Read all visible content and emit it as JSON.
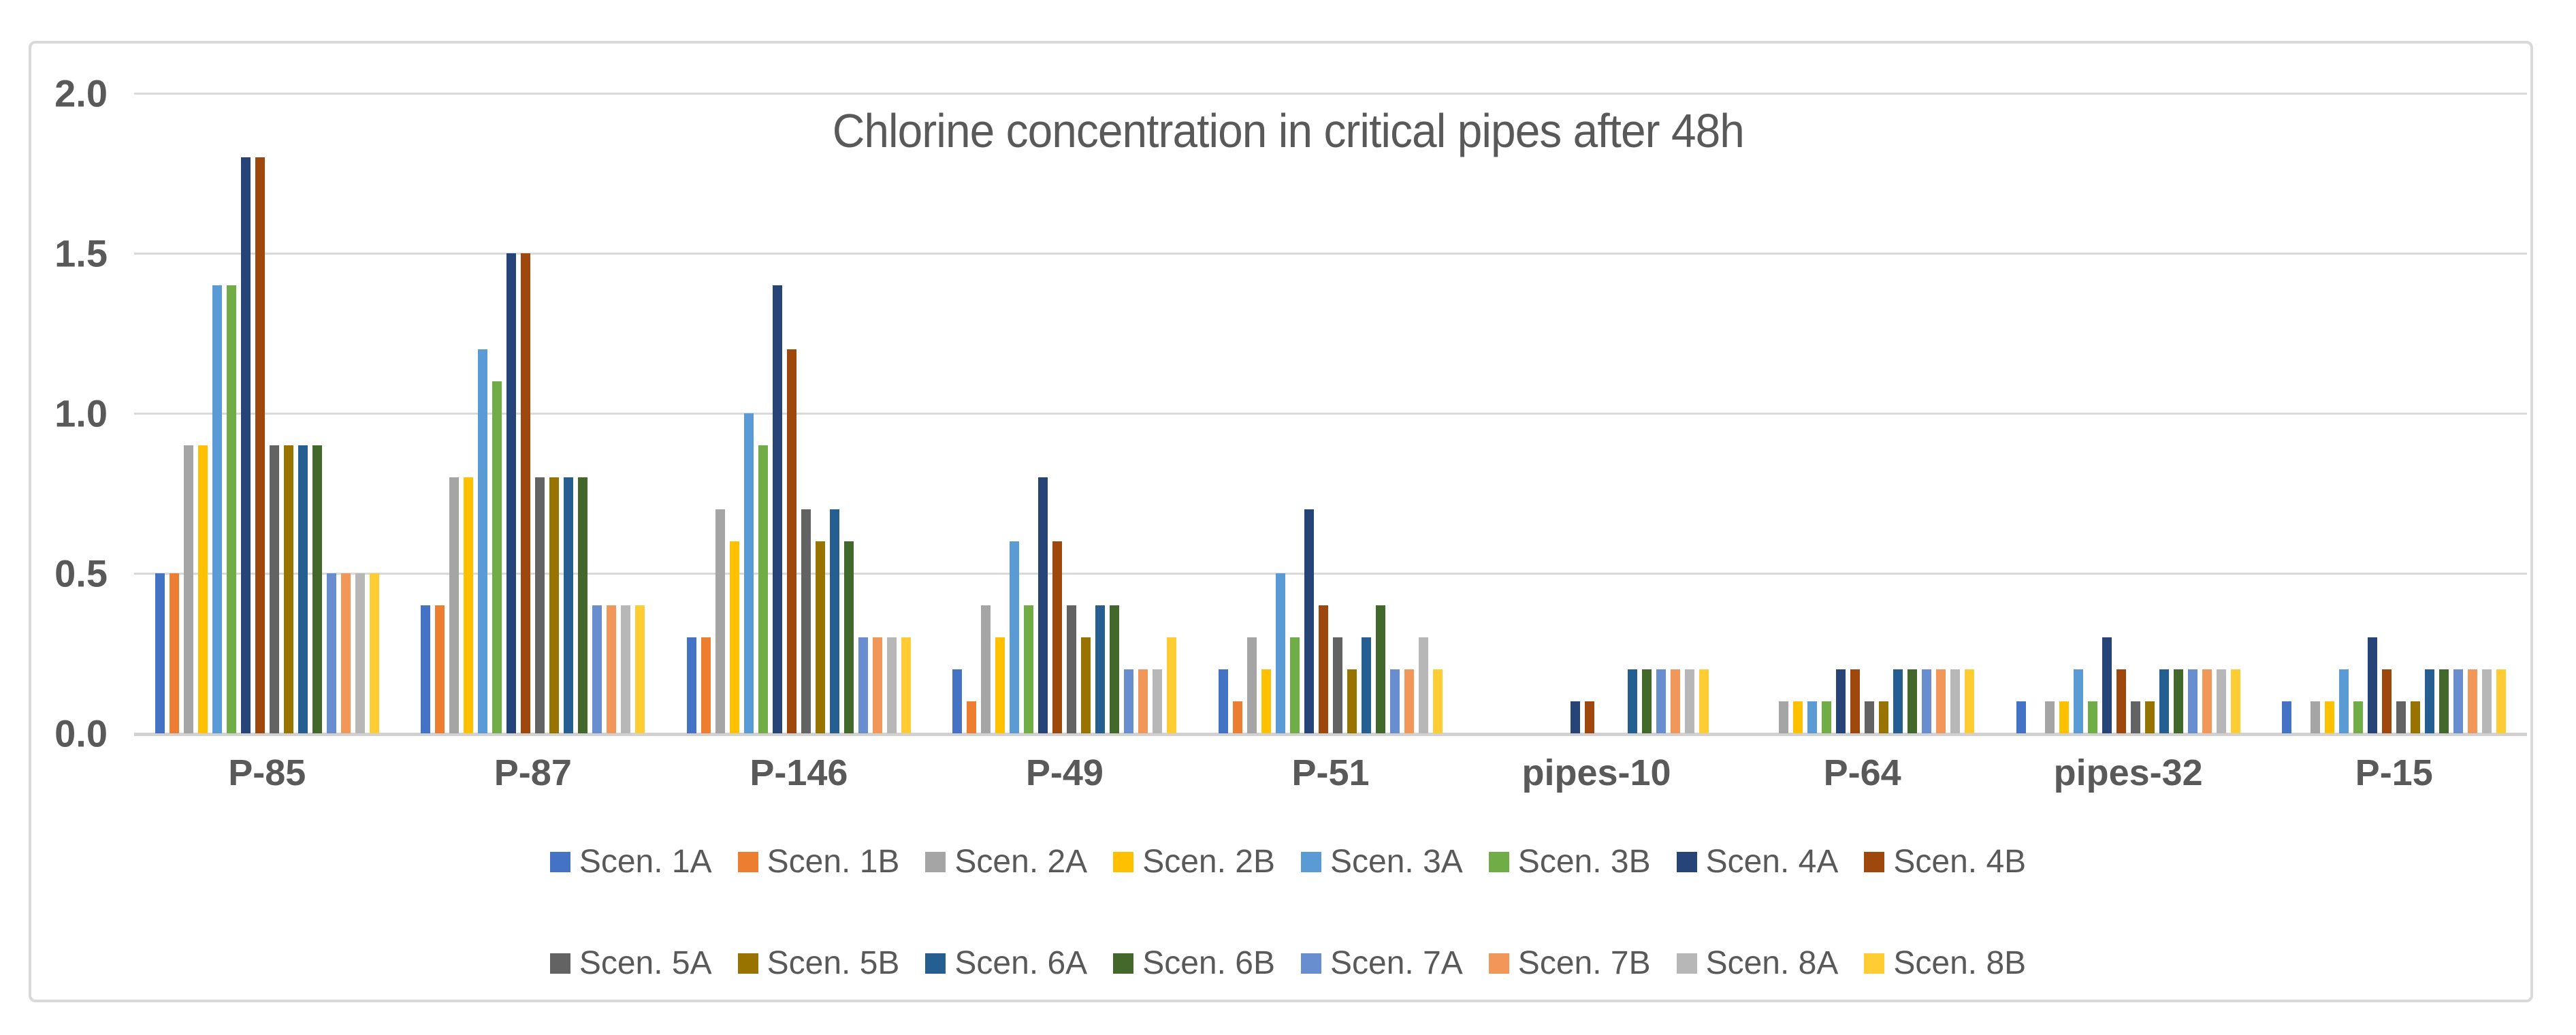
{
  "chart_data": {
    "type": "bar",
    "title": "Chlorine concentration in critical pipes after 48h",
    "xlabel": "",
    "ylabel": "",
    "ylim": [
      0.0,
      2.0
    ],
    "ytick_labels": [
      "2.0",
      "1.5",
      "1.0",
      "0.5",
      "0.0"
    ],
    "ytick_values": [
      2.0,
      1.5,
      1.0,
      0.5,
      0.0
    ],
    "grid": true,
    "legend_position": "bottom",
    "categories": [
      "P-85",
      "P-87",
      "P-146",
      "P-49",
      "P-51",
      "pipes-10",
      "P-64",
      "pipes-32",
      "P-15"
    ],
    "series": [
      {
        "name": "Scen. 1A",
        "color": "#4472C4",
        "values": [
          0.5,
          0.4,
          0.3,
          0.2,
          0.2,
          0.0,
          0.0,
          0.1,
          0.1
        ]
      },
      {
        "name": "Scen. 1B",
        "color": "#ED7D31",
        "values": [
          0.5,
          0.4,
          0.3,
          0.1,
          0.1,
          0.0,
          0.0,
          0.0,
          0.0
        ]
      },
      {
        "name": "Scen. 2A",
        "color": "#A5A5A5",
        "values": [
          0.9,
          0.8,
          0.7,
          0.4,
          0.3,
          0.0,
          0.1,
          0.1,
          0.1
        ]
      },
      {
        "name": "Scen. 2B",
        "color": "#FFC000",
        "values": [
          0.9,
          0.8,
          0.6,
          0.3,
          0.2,
          0.0,
          0.1,
          0.1,
          0.1
        ]
      },
      {
        "name": "Scen. 3A",
        "color": "#5B9BD5",
        "values": [
          1.4,
          1.2,
          1.0,
          0.6,
          0.5,
          0.0,
          0.1,
          0.2,
          0.2
        ]
      },
      {
        "name": "Scen. 3B",
        "color": "#70AD47",
        "values": [
          1.4,
          1.1,
          0.9,
          0.4,
          0.3,
          0.0,
          0.1,
          0.1,
          0.1
        ]
      },
      {
        "name": "Scen. 4A",
        "color": "#264478",
        "values": [
          1.8,
          1.5,
          1.4,
          0.8,
          0.7,
          0.1,
          0.2,
          0.3,
          0.3
        ]
      },
      {
        "name": "Scen. 4B",
        "color": "#9E480E",
        "values": [
          1.8,
          1.5,
          1.2,
          0.6,
          0.4,
          0.1,
          0.2,
          0.2,
          0.2
        ]
      },
      {
        "name": "Scen. 5A",
        "color": "#636363",
        "values": [
          0.9,
          0.8,
          0.7,
          0.4,
          0.3,
          0.0,
          0.1,
          0.1,
          0.1
        ]
      },
      {
        "name": "Scen. 5B",
        "color": "#997300",
        "values": [
          0.9,
          0.8,
          0.6,
          0.3,
          0.2,
          0.0,
          0.1,
          0.1,
          0.1
        ]
      },
      {
        "name": "Scen. 6A",
        "color": "#255E91",
        "values": [
          0.9,
          0.8,
          0.7,
          0.4,
          0.3,
          0.2,
          0.2,
          0.2,
          0.2
        ]
      },
      {
        "name": "Scen. 6B",
        "color": "#43682B",
        "values": [
          0.9,
          0.8,
          0.6,
          0.4,
          0.4,
          0.2,
          0.2,
          0.2,
          0.2
        ]
      },
      {
        "name": "Scen. 7A",
        "color": "#698ED0",
        "values": [
          0.5,
          0.4,
          0.3,
          0.2,
          0.2,
          0.2,
          0.2,
          0.2,
          0.2
        ]
      },
      {
        "name": "Scen. 7B",
        "color": "#F1975A",
        "values": [
          0.5,
          0.4,
          0.3,
          0.2,
          0.2,
          0.2,
          0.2,
          0.2,
          0.2
        ]
      },
      {
        "name": "Scen. 8A",
        "color": "#B7B7B7",
        "values": [
          0.5,
          0.4,
          0.3,
          0.2,
          0.3,
          0.2,
          0.2,
          0.2,
          0.2
        ]
      },
      {
        "name": "Scen. 8B",
        "color": "#FFCD33",
        "values": [
          0.5,
          0.4,
          0.3,
          0.3,
          0.2,
          0.2,
          0.2,
          0.2,
          0.2
        ]
      }
    ],
    "legend_rows": [
      [
        "Scen. 1A",
        "Scen. 1B",
        "Scen. 2A",
        "Scen. 2B",
        "Scen. 3A",
        "Scen. 3B",
        "Scen. 4A",
        "Scen. 4B"
      ],
      [
        "Scen. 5A",
        "Scen. 5B",
        "Scen. 6A",
        "Scen. 6B",
        "Scen. 7A",
        "Scen. 7B",
        "Scen. 8A",
        "Scen. 8B"
      ]
    ]
  },
  "styles": {
    "text_color": "#595959",
    "gridline_color": "#D9D9D9",
    "axis_line_color": "#D1D1D1",
    "frame_border_color": "#D9D9D9",
    "background": "#FFFFFF"
  }
}
